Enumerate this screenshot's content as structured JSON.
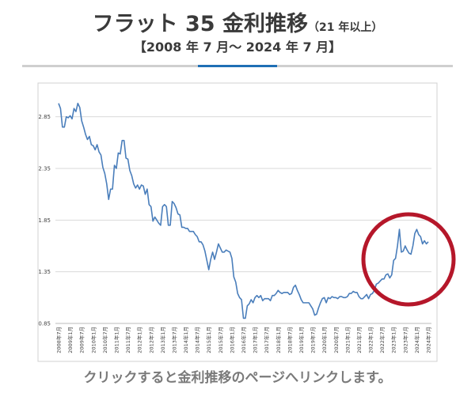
{
  "chart_data": {
    "type": "line",
    "title": "フラット 35 金利推移",
    "subtitle": "（21 年以上）",
    "period": "【2008 年 7 月～ 2024 年 7 月】",
    "caption": "クリックすると金利推移のページへリンクします。",
    "color": "#4a7ebb",
    "grid": true,
    "ylim": [
      0.85,
      3.1
    ],
    "yticks": [
      0.85,
      1.35,
      1.85,
      2.35,
      2.85
    ],
    "categories": [
      "2008年7月",
      null,
      null,
      null,
      null,
      null,
      "2009年1月",
      null,
      null,
      null,
      null,
      null,
      "2009年7月",
      null,
      null,
      null,
      null,
      null,
      "2010年1月",
      null,
      null,
      null,
      null,
      null,
      "2010年7月",
      null,
      null,
      null,
      null,
      null,
      "2011年1月",
      null,
      null,
      null,
      null,
      null,
      "2011年7月",
      null,
      null,
      null,
      null,
      null,
      "2012年1月",
      null,
      null,
      null,
      null,
      null,
      "2012年7月",
      null,
      null,
      null,
      null,
      null,
      "2013年1月",
      null,
      null,
      null,
      null,
      null,
      "2013年7月",
      null,
      null,
      null,
      null,
      null,
      "2014年1月",
      null,
      null,
      null,
      null,
      null,
      "2014年7月",
      null,
      null,
      null,
      null,
      null,
      "2015年1月",
      null,
      null,
      null,
      null,
      null,
      "2015年7月",
      null,
      null,
      null,
      null,
      null,
      "2016年1月",
      null,
      null,
      null,
      null,
      null,
      "2016年7月",
      null,
      null,
      null,
      null,
      null,
      "2017年1月",
      null,
      null,
      null,
      null,
      null,
      "2017年7月",
      null,
      null,
      null,
      null,
      null,
      "2018年1月",
      null,
      null,
      null,
      null,
      null,
      "2018年7月",
      null,
      null,
      null,
      null,
      null,
      "2019年1月",
      null,
      null,
      null,
      null,
      null,
      "2019年7月",
      null,
      null,
      null,
      null,
      null,
      "2020年1月",
      null,
      null,
      null,
      null,
      null,
      "2020年7月",
      null,
      null,
      null,
      null,
      null,
      "2021年1月",
      null,
      null,
      null,
      null,
      null,
      "2021年7月",
      null,
      null,
      null,
      null,
      null,
      "2022年1月",
      null,
      null,
      null,
      null,
      null,
      "2022年7月",
      null,
      null,
      null,
      null,
      null,
      "2023年1月",
      null,
      null,
      null,
      null,
      null,
      "2023年7月",
      null,
      null,
      null,
      null,
      null,
      "2024年1月",
      null,
      null,
      null,
      null,
      null,
      "2024年7月"
    ],
    "values": [
      2.98,
      2.93,
      2.75,
      2.75,
      2.85,
      2.84,
      2.86,
      2.83,
      2.93,
      2.9,
      2.98,
      2.94,
      2.81,
      2.75,
      2.68,
      2.63,
      2.66,
      2.58,
      2.57,
      2.53,
      2.58,
      2.51,
      2.48,
      2.36,
      2.3,
      2.2,
      2.05,
      2.15,
      2.15,
      2.38,
      2.35,
      2.5,
      2.49,
      2.62,
      2.62,
      2.45,
      2.44,
      2.33,
      2.28,
      2.2,
      2.16,
      2.19,
      2.15,
      2.19,
      2.18,
      2.1,
      2.15,
      2.0,
      1.98,
      1.84,
      1.88,
      1.85,
      1.82,
      1.8,
      1.98,
      2.0,
      1.98,
      1.8,
      1.8,
      2.03,
      2.01,
      1.97,
      1.91,
      1.9,
      1.78,
      1.78,
      1.77,
      1.77,
      1.74,
      1.74,
      1.74,
      1.71,
      1.69,
      1.64,
      1.64,
      1.61,
      1.55,
      1.46,
      1.37,
      1.47,
      1.54,
      1.47,
      1.54,
      1.62,
      1.58,
      1.54,
      1.54,
      1.56,
      1.55,
      1.54,
      1.48,
      1.3,
      1.25,
      1.14,
      1.1,
      1.08,
      0.9,
      0.9,
      1.02,
      1.04,
      1.08,
      1.05,
      1.1,
      1.12,
      1.1,
      1.12,
      1.07,
      1.09,
      1.09,
      1.09,
      1.07,
      1.12,
      1.12,
      1.14,
      1.17,
      1.15,
      1.14,
      1.15,
      1.15,
      1.15,
      1.13,
      1.14,
      1.2,
      1.22,
      1.17,
      1.13,
      1.08,
      1.05,
      1.05,
      1.05,
      1.05,
      1.02,
      0.99,
      0.93,
      0.94,
      1.0,
      1.05,
      1.09,
      1.1,
      1.05,
      1.1,
      1.09,
      1.11,
      1.1,
      1.1,
      1.09,
      1.11,
      1.11,
      1.1,
      1.1,
      1.11,
      1.14,
      1.14,
      1.16,
      1.15,
      1.15,
      1.11,
      1.09,
      1.09,
      1.11,
      1.13,
      1.09,
      1.13,
      1.14,
      1.17,
      1.23,
      1.24,
      1.26,
      1.28,
      1.28,
      1.32,
      1.33,
      1.29,
      1.32,
      1.46,
      1.48,
      1.6,
      1.76,
      1.54,
      1.55,
      1.6,
      1.56,
      1.53,
      1.52,
      1.6,
      1.72,
      1.76,
      1.71,
      1.69,
      1.62,
      1.65,
      1.62,
      1.64
    ]
  }
}
